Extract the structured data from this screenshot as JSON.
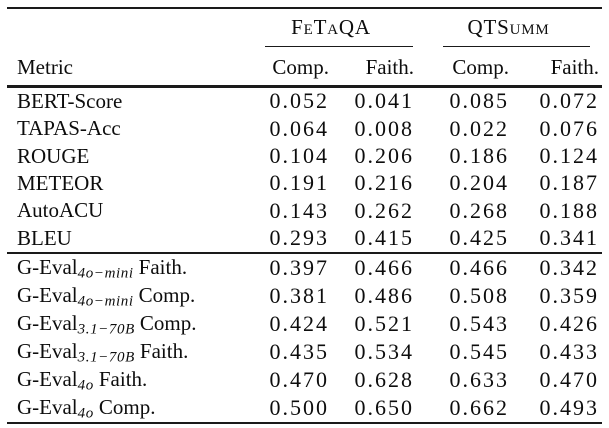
{
  "table": {
    "groups": [
      {
        "label": "FeTaQA"
      },
      {
        "label": "QTSumm"
      }
    ],
    "columns": {
      "metric": "Metric",
      "sub": [
        "Comp.",
        "Faith.",
        "Comp.",
        "Faith."
      ]
    },
    "sections": [
      {
        "rows": [
          {
            "metric": "BERT-Score",
            "sub": "",
            "suffix": "",
            "values": [
              "0.052",
              "0.041",
              "0.085",
              "0.072"
            ]
          },
          {
            "metric": "TAPAS-Acc",
            "sub": "",
            "suffix": "",
            "values": [
              "0.064",
              "0.008",
              "0.022",
              "0.076"
            ]
          },
          {
            "metric": "ROUGE",
            "sub": "",
            "suffix": "",
            "values": [
              "0.104",
              "0.206",
              "0.186",
              "0.124"
            ]
          },
          {
            "metric": "METEOR",
            "sub": "",
            "suffix": "",
            "values": [
              "0.191",
              "0.216",
              "0.204",
              "0.187"
            ]
          },
          {
            "metric": "AutoACU",
            "sub": "",
            "suffix": "",
            "values": [
              "0.143",
              "0.262",
              "0.268",
              "0.188"
            ]
          },
          {
            "metric": "BLEU",
            "sub": "",
            "suffix": "",
            "values": [
              "0.293",
              "0.415",
              "0.425",
              "0.341"
            ]
          }
        ]
      },
      {
        "rows": [
          {
            "metric": "G-Eval",
            "sub": "4o−mini",
            "suffix": "Faith.",
            "values": [
              "0.397",
              "0.466",
              "0.466",
              "0.342"
            ]
          },
          {
            "metric": "G-Eval",
            "sub": "4o−mini",
            "suffix": "Comp.",
            "values": [
              "0.381",
              "0.486",
              "0.508",
              "0.359"
            ]
          },
          {
            "metric": "G-Eval",
            "sub": "3.1−70B",
            "suffix": "Comp.",
            "values": [
              "0.424",
              "0.521",
              "0.543",
              "0.426"
            ]
          },
          {
            "metric": "G-Eval",
            "sub": "3.1−70B",
            "suffix": "Faith.",
            "values": [
              "0.435",
              "0.534",
              "0.545",
              "0.433"
            ]
          },
          {
            "metric": "G-Eval",
            "sub": "4o",
            "suffix": "Faith.",
            "values": [
              "0.470",
              "0.628",
              "0.633",
              "0.470"
            ]
          },
          {
            "metric": "G-Eval",
            "sub": "4o",
            "suffix": "Comp.",
            "values": [
              "0.500",
              "0.650",
              "0.662",
              "0.493"
            ]
          }
        ]
      }
    ]
  },
  "chart_data": {
    "type": "table",
    "column_groups": [
      "FeTaQA",
      "QTSumm"
    ],
    "columns": [
      "Metric",
      "FeTaQA Comp.",
      "FeTaQA Faith.",
      "QTSumm Comp.",
      "QTSumm Faith."
    ],
    "rows": [
      [
        "BERT-Score",
        0.052,
        0.041,
        0.085,
        0.072
      ],
      [
        "TAPAS-Acc",
        0.064,
        0.008,
        0.022,
        0.076
      ],
      [
        "ROUGE",
        0.104,
        0.206,
        0.186,
        0.124
      ],
      [
        "METEOR",
        0.191,
        0.216,
        0.204,
        0.187
      ],
      [
        "AutoACU",
        0.143,
        0.262,
        0.268,
        0.188
      ],
      [
        "BLEU",
        0.293,
        0.415,
        0.425,
        0.341
      ],
      [
        "G-Eval_{4o-mini} Faith.",
        0.397,
        0.466,
        0.466,
        0.342
      ],
      [
        "G-Eval_{4o-mini} Comp.",
        0.381,
        0.486,
        0.508,
        0.359
      ],
      [
        "G-Eval_{3.1-70B} Comp.",
        0.424,
        0.521,
        0.543,
        0.426
      ],
      [
        "G-Eval_{3.1-70B} Faith.",
        0.435,
        0.534,
        0.545,
        0.433
      ],
      [
        "G-Eval_{4o} Faith.",
        0.47,
        0.628,
        0.633,
        0.47
      ],
      [
        "G-Eval_{4o} Comp.",
        0.5,
        0.65,
        0.662,
        0.493
      ]
    ]
  }
}
